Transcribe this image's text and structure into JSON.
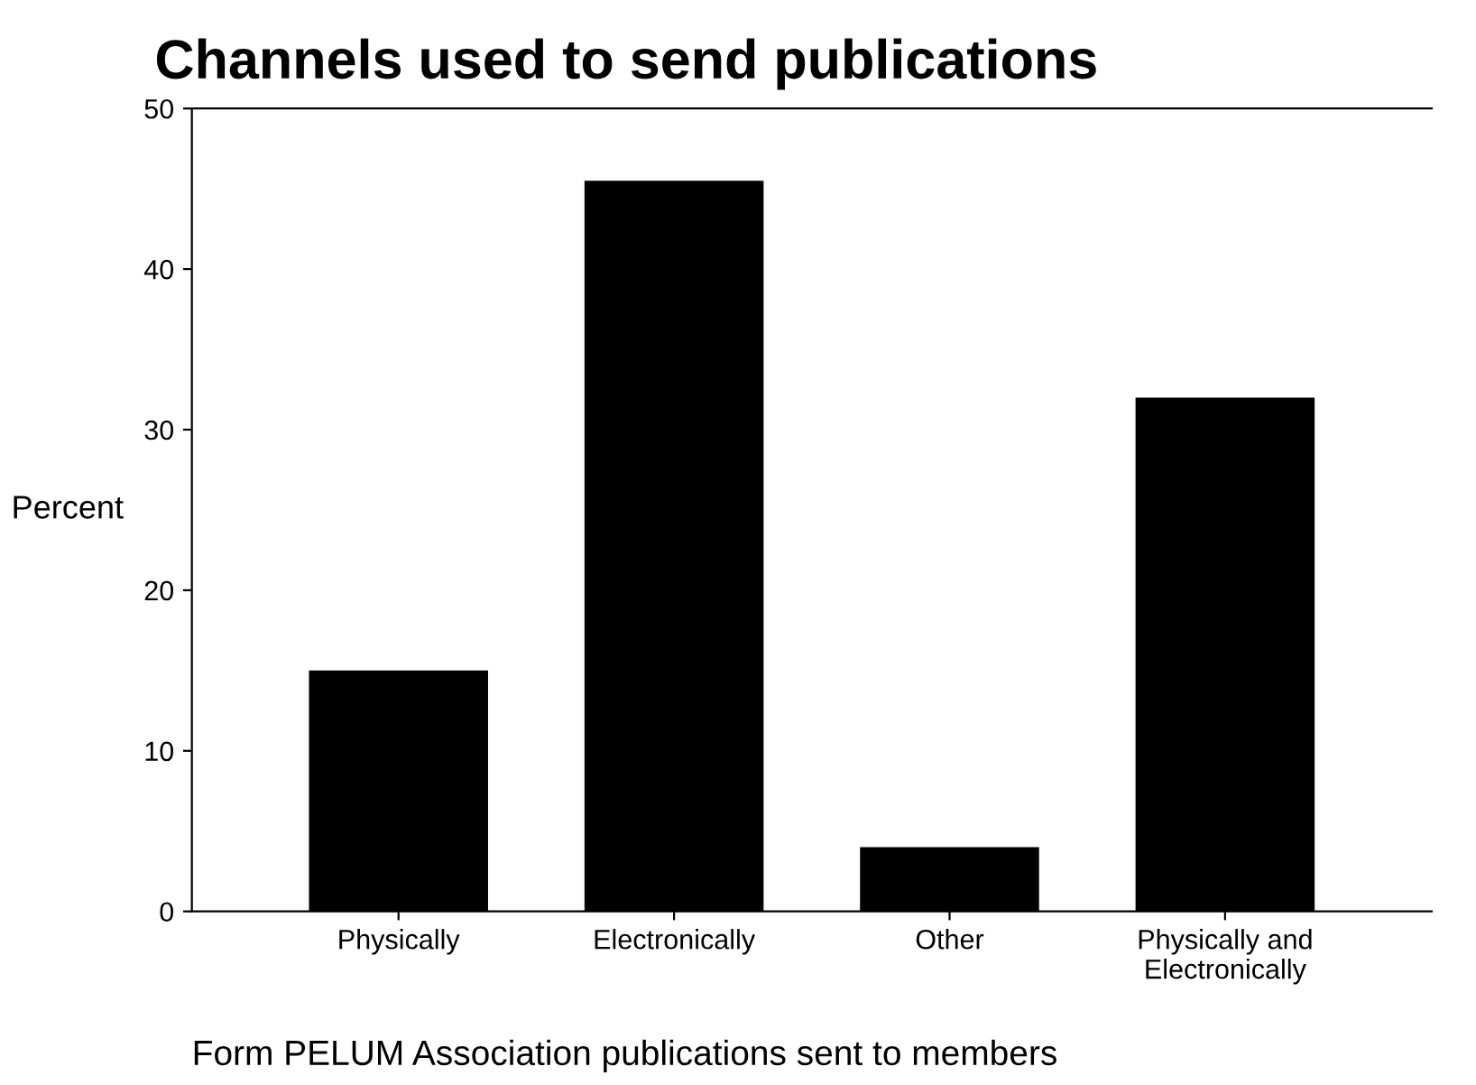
{
  "chart_data": {
    "type": "bar",
    "title": "Channels used to send publications",
    "ylabel": "Percent",
    "xlabel": "Form PELUM Association publications sent to members",
    "categories": [
      "Physically",
      "Electronically",
      "Other",
      "Physically and\nElectronically"
    ],
    "values": [
      15,
      45.5,
      4,
      32
    ],
    "color": "#000000",
    "ylim": [
      0,
      50
    ],
    "yticks": [
      0,
      10,
      20,
      30,
      40,
      50
    ],
    "grid": false
  }
}
